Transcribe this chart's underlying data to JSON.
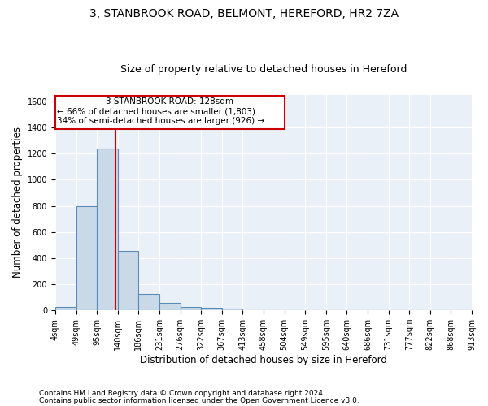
{
  "title": "3, STANBROOK ROAD, BELMONT, HEREFORD, HR2 7ZA",
  "subtitle": "Size of property relative to detached houses in Hereford",
  "xlabel": "Distribution of detached houses by size in Hereford",
  "ylabel": "Number of detached properties",
  "bar_color": "#c9d9e8",
  "bar_edge_color": "#5b8db8",
  "background_color": "#eaf0f8",
  "grid_color": "#ffffff",
  "bin_labels": [
    "4sqm",
    "49sqm",
    "95sqm",
    "140sqm",
    "186sqm",
    "231sqm",
    "276sqm",
    "322sqm",
    "367sqm",
    "413sqm",
    "458sqm",
    "504sqm",
    "549sqm",
    "595sqm",
    "640sqm",
    "686sqm",
    "731sqm",
    "777sqm",
    "822sqm",
    "868sqm",
    "913sqm"
  ],
  "bar_heights": [
    25,
    800,
    1240,
    455,
    125,
    60,
    28,
    18,
    12,
    0,
    0,
    0,
    0,
    0,
    0,
    0,
    0,
    0,
    0,
    0
  ],
  "red_line_bin": 2.88,
  "annotation_text_line1": "3 STANBROOK ROAD: 128sqm",
  "annotation_text_line2": "← 66% of detached houses are smaller (1,803)",
  "annotation_text_line3": "34% of semi-detached houses are larger (926) →",
  "ylim": [
    0,
    1650
  ],
  "yticks": [
    0,
    200,
    400,
    600,
    800,
    1000,
    1200,
    1400,
    1600
  ],
  "footnote_line1": "Contains HM Land Registry data © Crown copyright and database right 2024.",
  "footnote_line2": "Contains public sector information licensed under the Open Government Licence v3.0.",
  "annotation_box_color": "#ffffff",
  "annotation_box_edge": "#cc0000",
  "red_line_color": "#cc0000",
  "title_fontsize": 10,
  "subtitle_fontsize": 9,
  "label_fontsize": 8.5,
  "tick_fontsize": 7,
  "annot_fontsize": 7.5,
  "footnote_fontsize": 6.5
}
